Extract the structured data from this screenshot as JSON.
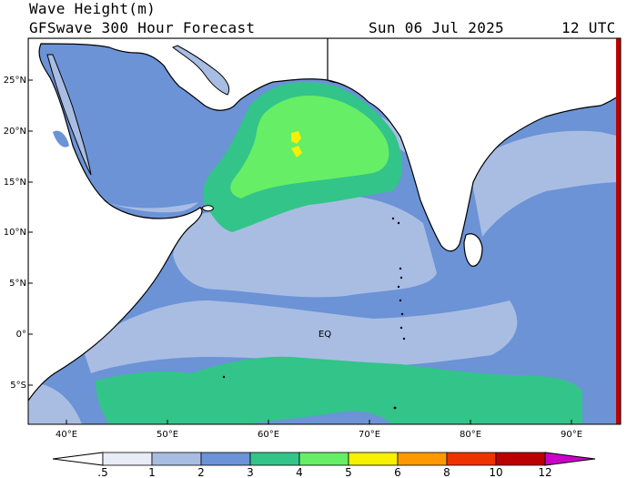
{
  "header": {
    "variable": "Wave Height(m)",
    "product": "GFSwave 300 Hour Forecast",
    "valid_date": "Sun 06 Jul 2025",
    "valid_time": "12 UTC"
  },
  "map": {
    "region": "Arabian Sea / North Indian Ocean",
    "lon_range": [
      35,
      94.5
    ],
    "lat_range": [
      -9,
      29
    ],
    "lat_labels": [
      "25°N",
      "20°N",
      "15°N",
      "10°N",
      "5°N",
      "0°",
      "5°S"
    ],
    "lon_labels": [
      "40°E",
      "50°E",
      "60°E",
      "70°E",
      "80°E",
      "90°E"
    ],
    "equator_label": "EQ",
    "colors": {
      "land": "#ffffff",
      "coast": "#000000",
      "band_0_5_1": "#e8ecf7",
      "band_1_2": "#a9bde3",
      "band_2_3": "#6b93d6",
      "band_3_4": "#33c48a",
      "band_4_5": "#66ee66",
      "band_5_6": "#f7f000"
    }
  },
  "colorbar": {
    "labels": [
      ".5",
      "1",
      "2",
      "3",
      "4",
      "5",
      "6",
      "8",
      "10",
      "12"
    ],
    "colors": [
      "#e8ecf7",
      "#a9bde3",
      "#6b93d6",
      "#33c48a",
      "#66ee66",
      "#f7f000",
      "#ff9900",
      "#ee3300",
      "#bb0000",
      "#cc00cc"
    ]
  }
}
